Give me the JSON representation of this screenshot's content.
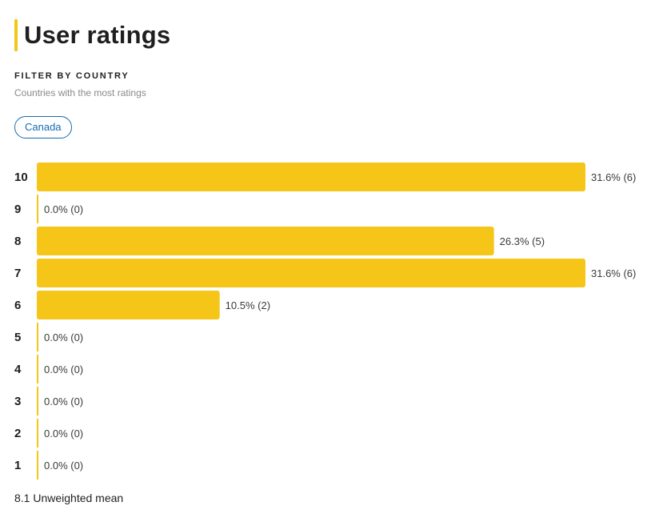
{
  "header": {
    "title": "User ratings"
  },
  "filter": {
    "heading": "FILTER BY COUNTRY",
    "subtitle": "Countries with the most ratings",
    "chips": [
      "Canada"
    ]
  },
  "chart_data": {
    "type": "bar",
    "orientation": "horizontal",
    "categories": [
      "10",
      "9",
      "8",
      "7",
      "6",
      "5",
      "4",
      "3",
      "2",
      "1"
    ],
    "values": [
      6,
      0,
      5,
      6,
      2,
      0,
      0,
      0,
      0,
      0
    ],
    "value_labels": [
      "31.6% (6)",
      "0.0% (0)",
      "26.3% (5)",
      "31.6% (6)",
      "10.5% (2)",
      "0.0% (0)",
      "0.0% (0)",
      "0.0% (0)",
      "0.0% (0)",
      "0.0% (0)"
    ],
    "xlim": [
      0,
      6
    ],
    "bar_color": "#f5c518",
    "title": "",
    "xlabel": "",
    "ylabel": ""
  },
  "summary": {
    "mean_label": "8.1 Unweighted mean"
  },
  "colors": {
    "accent": "#f5c518",
    "link": "#136cb2"
  }
}
